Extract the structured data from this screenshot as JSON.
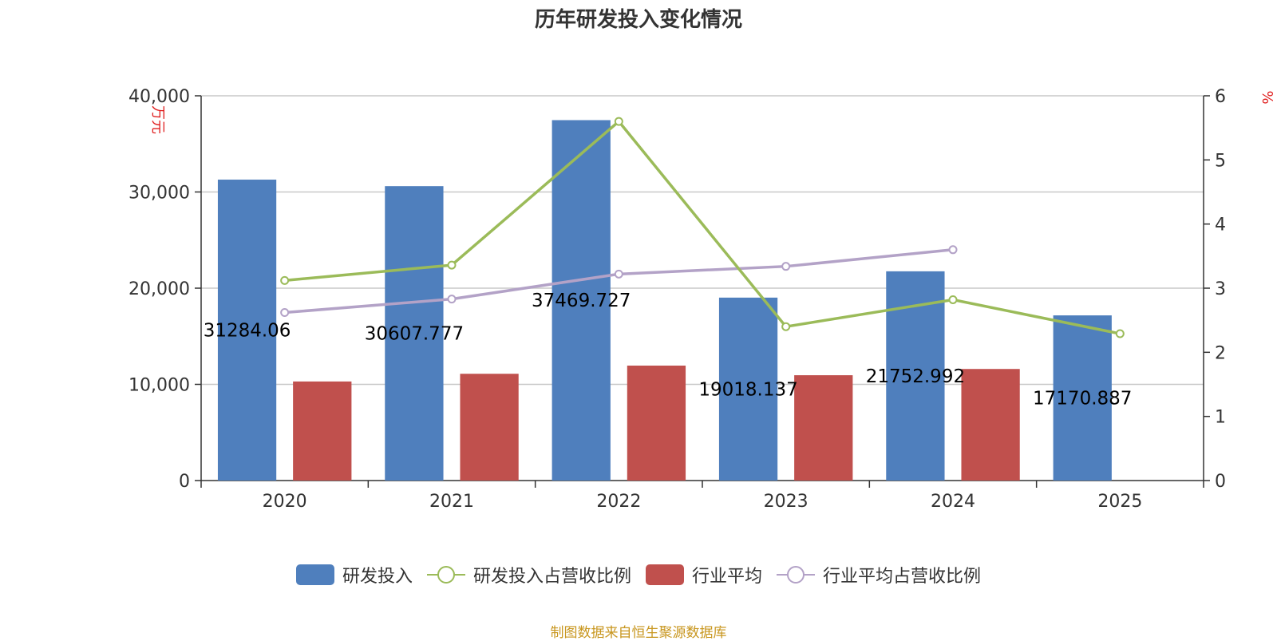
{
  "title": "历年研发投入变化情况",
  "source_note": "制图数据来自恒生聚源数据库",
  "colors": {
    "rd_investment": "#4f7fbd",
    "industry_avg": "#c0504d",
    "rd_ratio": "#9bbb59",
    "industry_ratio": "#b3a2c7",
    "axis_unit": "#e01f1f",
    "source": "#c8961e"
  },
  "chart_data": {
    "type": "bar",
    "title": "历年研发投入变化情况",
    "categories": [
      "2020",
      "2021",
      "2022",
      "2023",
      "2024",
      "2025"
    ],
    "ylabel_left": "万元",
    "ylabel_right": "%",
    "ylim_left": [
      0,
      40000
    ],
    "ylim_right": [
      0,
      6
    ],
    "yticks_left": [
      "0",
      "10,000",
      "20,000",
      "30,000",
      "40,000"
    ],
    "yticks_right": [
      "0",
      "1",
      "2",
      "3",
      "4",
      "5",
      "6"
    ],
    "grid": true,
    "legend_position": "bottom",
    "series": [
      {
        "name": "研发投入",
        "kind": "bar",
        "axis": "left",
        "values": [
          31284.06,
          30607.777,
          37469.727,
          19018.137,
          21752.992,
          17170.887
        ],
        "labels": [
          "31284.06",
          "30607.777",
          "37469.727",
          "19018.137",
          "21752.992",
          "17170.887"
        ]
      },
      {
        "name": "研发投入占营收比例",
        "kind": "line",
        "axis": "right",
        "values": [
          3.12,
          3.36,
          5.6,
          2.4,
          2.82,
          2.29
        ]
      },
      {
        "name": "行业平均",
        "kind": "bar",
        "axis": "left",
        "values": [
          10300,
          11100,
          11950,
          10950,
          11600,
          null
        ]
      },
      {
        "name": "行业平均占营收比例",
        "kind": "line",
        "axis": "right",
        "values": [
          2.62,
          2.83,
          3.22,
          3.34,
          3.6,
          null
        ]
      }
    ]
  }
}
